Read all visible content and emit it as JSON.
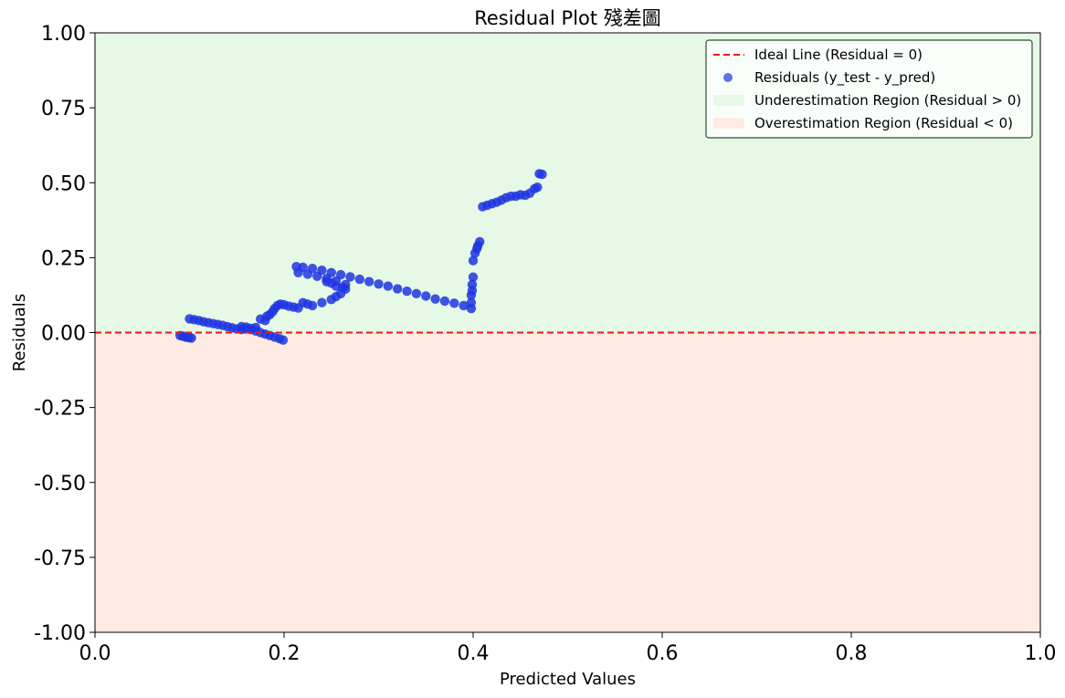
{
  "chart_data": {
    "type": "scatter",
    "title": "Residual Plot 殘差圖",
    "xlabel": "Predicted Values",
    "ylabel": "Residuals",
    "xlim": [
      0.0,
      1.0
    ],
    "ylim": [
      -1.0,
      1.0
    ],
    "xticks": [
      "0.0",
      "0.2",
      "0.4",
      "0.6",
      "0.8",
      "1.0"
    ],
    "yticks": [
      "1.00",
      "0.75",
      "0.50",
      "0.25",
      "0.00",
      "-0.25",
      "-0.50",
      "-0.75",
      "-1.00"
    ],
    "grid": false,
    "legend_position": "top-right",
    "colors": {
      "points": "#1f35e0",
      "ideal_line": "#e41a1c",
      "under_region": "#e6f9e6",
      "over_region": "#ffebe3",
      "legend_border": "#2f4f2f"
    },
    "legend": [
      {
        "key": "ideal",
        "label": "Ideal Line (Residual = 0)"
      },
      {
        "key": "points",
        "label": "Residuals (y_test - y_pred)"
      },
      {
        "key": "under",
        "label": "Underestimation Region (Residual > 0)"
      },
      {
        "key": "over",
        "label": "Overestimation Region (Residual < 0)"
      }
    ],
    "ideal_line_y": 0.0,
    "series": [
      {
        "points": [
          [
            0.09,
            -0.01
          ],
          [
            0.093,
            -0.012
          ],
          [
            0.096,
            -0.015
          ],
          [
            0.099,
            -0.017
          ],
          [
            0.102,
            -0.018
          ],
          [
            0.1,
            0.046
          ],
          [
            0.105,
            0.043
          ],
          [
            0.11,
            0.04
          ],
          [
            0.115,
            0.036
          ],
          [
            0.12,
            0.033
          ],
          [
            0.125,
            0.03
          ],
          [
            0.13,
            0.027
          ],
          [
            0.135,
            0.024
          ],
          [
            0.14,
            0.02
          ],
          [
            0.145,
            0.016
          ],
          [
            0.15,
            0.012
          ],
          [
            0.155,
            0.01
          ],
          [
            0.16,
            0.012
          ],
          [
            0.165,
            0.014
          ],
          [
            0.17,
            0.017
          ],
          [
            0.155,
            0.02
          ],
          [
            0.16,
            0.018
          ],
          [
            0.165,
            0.01
          ],
          [
            0.17,
            0.005
          ],
          [
            0.175,
            0.0
          ],
          [
            0.18,
            -0.005
          ],
          [
            0.185,
            -0.01
          ],
          [
            0.19,
            -0.015
          ],
          [
            0.195,
            -0.02
          ],
          [
            0.199,
            -0.025
          ],
          [
            0.175,
            0.045
          ],
          [
            0.18,
            0.04
          ],
          [
            0.182,
            0.055
          ],
          [
            0.185,
            0.06
          ],
          [
            0.188,
            0.07
          ],
          [
            0.19,
            0.08
          ],
          [
            0.193,
            0.09
          ],
          [
            0.196,
            0.095
          ],
          [
            0.2,
            0.093
          ],
          [
            0.205,
            0.088
          ],
          [
            0.21,
            0.085
          ],
          [
            0.215,
            0.082
          ],
          [
            0.22,
            0.1
          ],
          [
            0.225,
            0.095
          ],
          [
            0.23,
            0.09
          ],
          [
            0.24,
            0.1
          ],
          [
            0.25,
            0.11
          ],
          [
            0.255,
            0.12
          ],
          [
            0.26,
            0.13
          ],
          [
            0.265,
            0.145
          ],
          [
            0.213,
            0.22
          ],
          [
            0.22,
            0.218
          ],
          [
            0.23,
            0.214
          ],
          [
            0.24,
            0.208
          ],
          [
            0.25,
            0.2
          ],
          [
            0.26,
            0.193
          ],
          [
            0.27,
            0.186
          ],
          [
            0.28,
            0.178
          ],
          [
            0.29,
            0.17
          ],
          [
            0.3,
            0.162
          ],
          [
            0.31,
            0.155
          ],
          [
            0.32,
            0.146
          ],
          [
            0.33,
            0.138
          ],
          [
            0.34,
            0.13
          ],
          [
            0.35,
            0.122
          ],
          [
            0.36,
            0.112
          ],
          [
            0.37,
            0.105
          ],
          [
            0.38,
            0.098
          ],
          [
            0.39,
            0.09
          ],
          [
            0.398,
            0.08
          ],
          [
            0.215,
            0.2
          ],
          [
            0.225,
            0.195
          ],
          [
            0.235,
            0.188
          ],
          [
            0.245,
            0.18
          ],
          [
            0.255,
            0.172
          ],
          [
            0.262,
            0.15
          ],
          [
            0.265,
            0.16
          ],
          [
            0.255,
            0.155
          ],
          [
            0.25,
            0.165
          ],
          [
            0.245,
            0.17
          ],
          [
            0.398,
            0.1
          ],
          [
            0.398,
            0.125
          ],
          [
            0.399,
            0.14
          ],
          [
            0.399,
            0.16
          ],
          [
            0.4,
            0.185
          ],
          [
            0.4,
            0.24
          ],
          [
            0.402,
            0.265
          ],
          [
            0.404,
            0.28
          ],
          [
            0.405,
            0.29
          ],
          [
            0.407,
            0.303
          ],
          [
            0.41,
            0.42
          ],
          [
            0.415,
            0.425
          ],
          [
            0.42,
            0.43
          ],
          [
            0.425,
            0.435
          ],
          [
            0.43,
            0.442
          ],
          [
            0.435,
            0.45
          ],
          [
            0.44,
            0.455
          ],
          [
            0.445,
            0.455
          ],
          [
            0.45,
            0.46
          ],
          [
            0.455,
            0.458
          ],
          [
            0.46,
            0.465
          ],
          [
            0.465,
            0.48
          ],
          [
            0.468,
            0.485
          ],
          [
            0.47,
            0.53
          ],
          [
            0.473,
            0.528
          ]
        ]
      }
    ]
  }
}
